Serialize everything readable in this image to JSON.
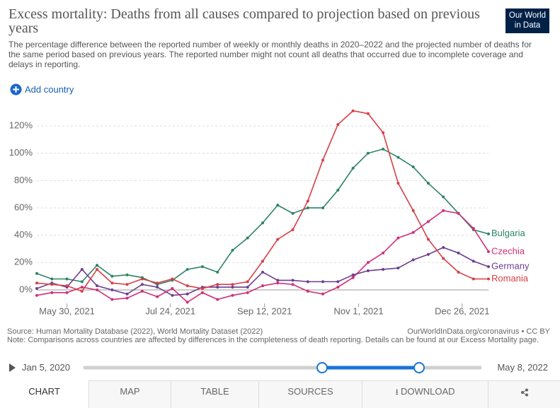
{
  "header": {
    "title": "Excess mortality: Deaths from all causes compared to projection based on previous years",
    "subtitle": "The percentage difference between the reported number of weekly or monthly deaths in 2020–2022 and the projected number of deaths for the same period based on previous years. The reported number might not count all deaths that occurred due to incomplete coverage and delays in reporting.",
    "logo": [
      "Our World",
      "in Data"
    ]
  },
  "controls": {
    "add_country": "Add country"
  },
  "chart_data": {
    "type": "line",
    "x": [
      "2021-05-14",
      "2021-05-22",
      "2021-05-30",
      "2021-06-07",
      "2021-06-15",
      "2021-06-23",
      "2021-07-01",
      "2021-07-09",
      "2021-07-17",
      "2021-07-25",
      "2021-08-02",
      "2021-08-10",
      "2021-08-18",
      "2021-08-26",
      "2021-09-03",
      "2021-09-11",
      "2021-09-19",
      "2021-09-27",
      "2021-10-05",
      "2021-10-13",
      "2021-10-21",
      "2021-10-29",
      "2021-11-06",
      "2021-11-14",
      "2021-11-22",
      "2021-11-30",
      "2021-12-08",
      "2021-12-16",
      "2021-12-24",
      "2022-01-01",
      "2022-01-09"
    ],
    "xlim": [
      "2021-05-14",
      "2022-01-09"
    ],
    "xticks": [
      {
        "value": "2021-05-30",
        "label": "May 30, 2021"
      },
      {
        "value": "2021-07-24",
        "label": "Jul 24, 2021"
      },
      {
        "value": "2021-09-12",
        "label": "Sep 12, 2021"
      },
      {
        "value": "2021-11-01",
        "label": "Nov 1, 2021"
      },
      {
        "value": "2021-12-26",
        "label": "Dec 26, 2021"
      }
    ],
    "ylim": [
      -10,
      135
    ],
    "yticks": [
      {
        "value": 0,
        "label": "0%"
      },
      {
        "value": 20,
        "label": "20%"
      },
      {
        "value": 40,
        "label": "40%"
      },
      {
        "value": 60,
        "label": "60%"
      },
      {
        "value": 80,
        "label": "80%"
      },
      {
        "value": 100,
        "label": "100%"
      },
      {
        "value": 120,
        "label": "120%"
      }
    ],
    "grid": true,
    "series": [
      {
        "name": "Bulgaria",
        "color": "#2c8465",
        "values": [
          12,
          8,
          8,
          6,
          18,
          10,
          11,
          9,
          4,
          7,
          15,
          17,
          13,
          29,
          38,
          49,
          62,
          56,
          60,
          60,
          73,
          89,
          100,
          103,
          97,
          90,
          78,
          68,
          56,
          44,
          41
        ]
      },
      {
        "name": "Czechia",
        "color": "#cf2f7a",
        "values": [
          -4,
          -2,
          -2,
          2,
          0,
          -7,
          -6,
          -1,
          -5,
          1,
          -9,
          -2,
          -7,
          -4,
          -2,
          3,
          5,
          4,
          -1,
          -3,
          2,
          9,
          20,
          27,
          38,
          42,
          50,
          58,
          56,
          45,
          28
        ]
      },
      {
        "name": "Germany",
        "color": "#6d3e91",
        "values": [
          1,
          5,
          2,
          15,
          3,
          0,
          -3,
          4,
          2,
          -4,
          -3,
          2,
          2,
          2,
          2,
          13,
          7,
          7,
          6,
          6,
          6,
          11,
          14,
          15,
          16,
          22,
          26,
          31,
          27,
          21,
          17
        ]
      },
      {
        "name": "Romania",
        "color": "#d63f46",
        "values": [
          5,
          4,
          3,
          -1,
          15,
          5,
          4,
          8,
          5,
          8,
          3,
          1,
          4,
          4,
          6,
          21,
          37,
          44,
          65,
          95,
          121,
          131,
          129,
          115,
          78,
          58,
          37,
          23,
          13,
          8,
          8
        ]
      }
    ]
  },
  "footer": {
    "source": "Source: Human Mortality Database (2022), World Mortality Dataset (2022)",
    "link": "OurWorldInData.org/coronavirus • CC BY",
    "note": "Note: Comparisons across countries are affected by differences in the completeness of death reporting. Details can be found at our Excess Mortality page."
  },
  "timeline": {
    "start": "Jan 5, 2020",
    "end": "May 8, 2022"
  },
  "tabs": [
    "CHART",
    "MAP",
    "TABLE",
    "SOURCES",
    "DOWNLOAD"
  ]
}
